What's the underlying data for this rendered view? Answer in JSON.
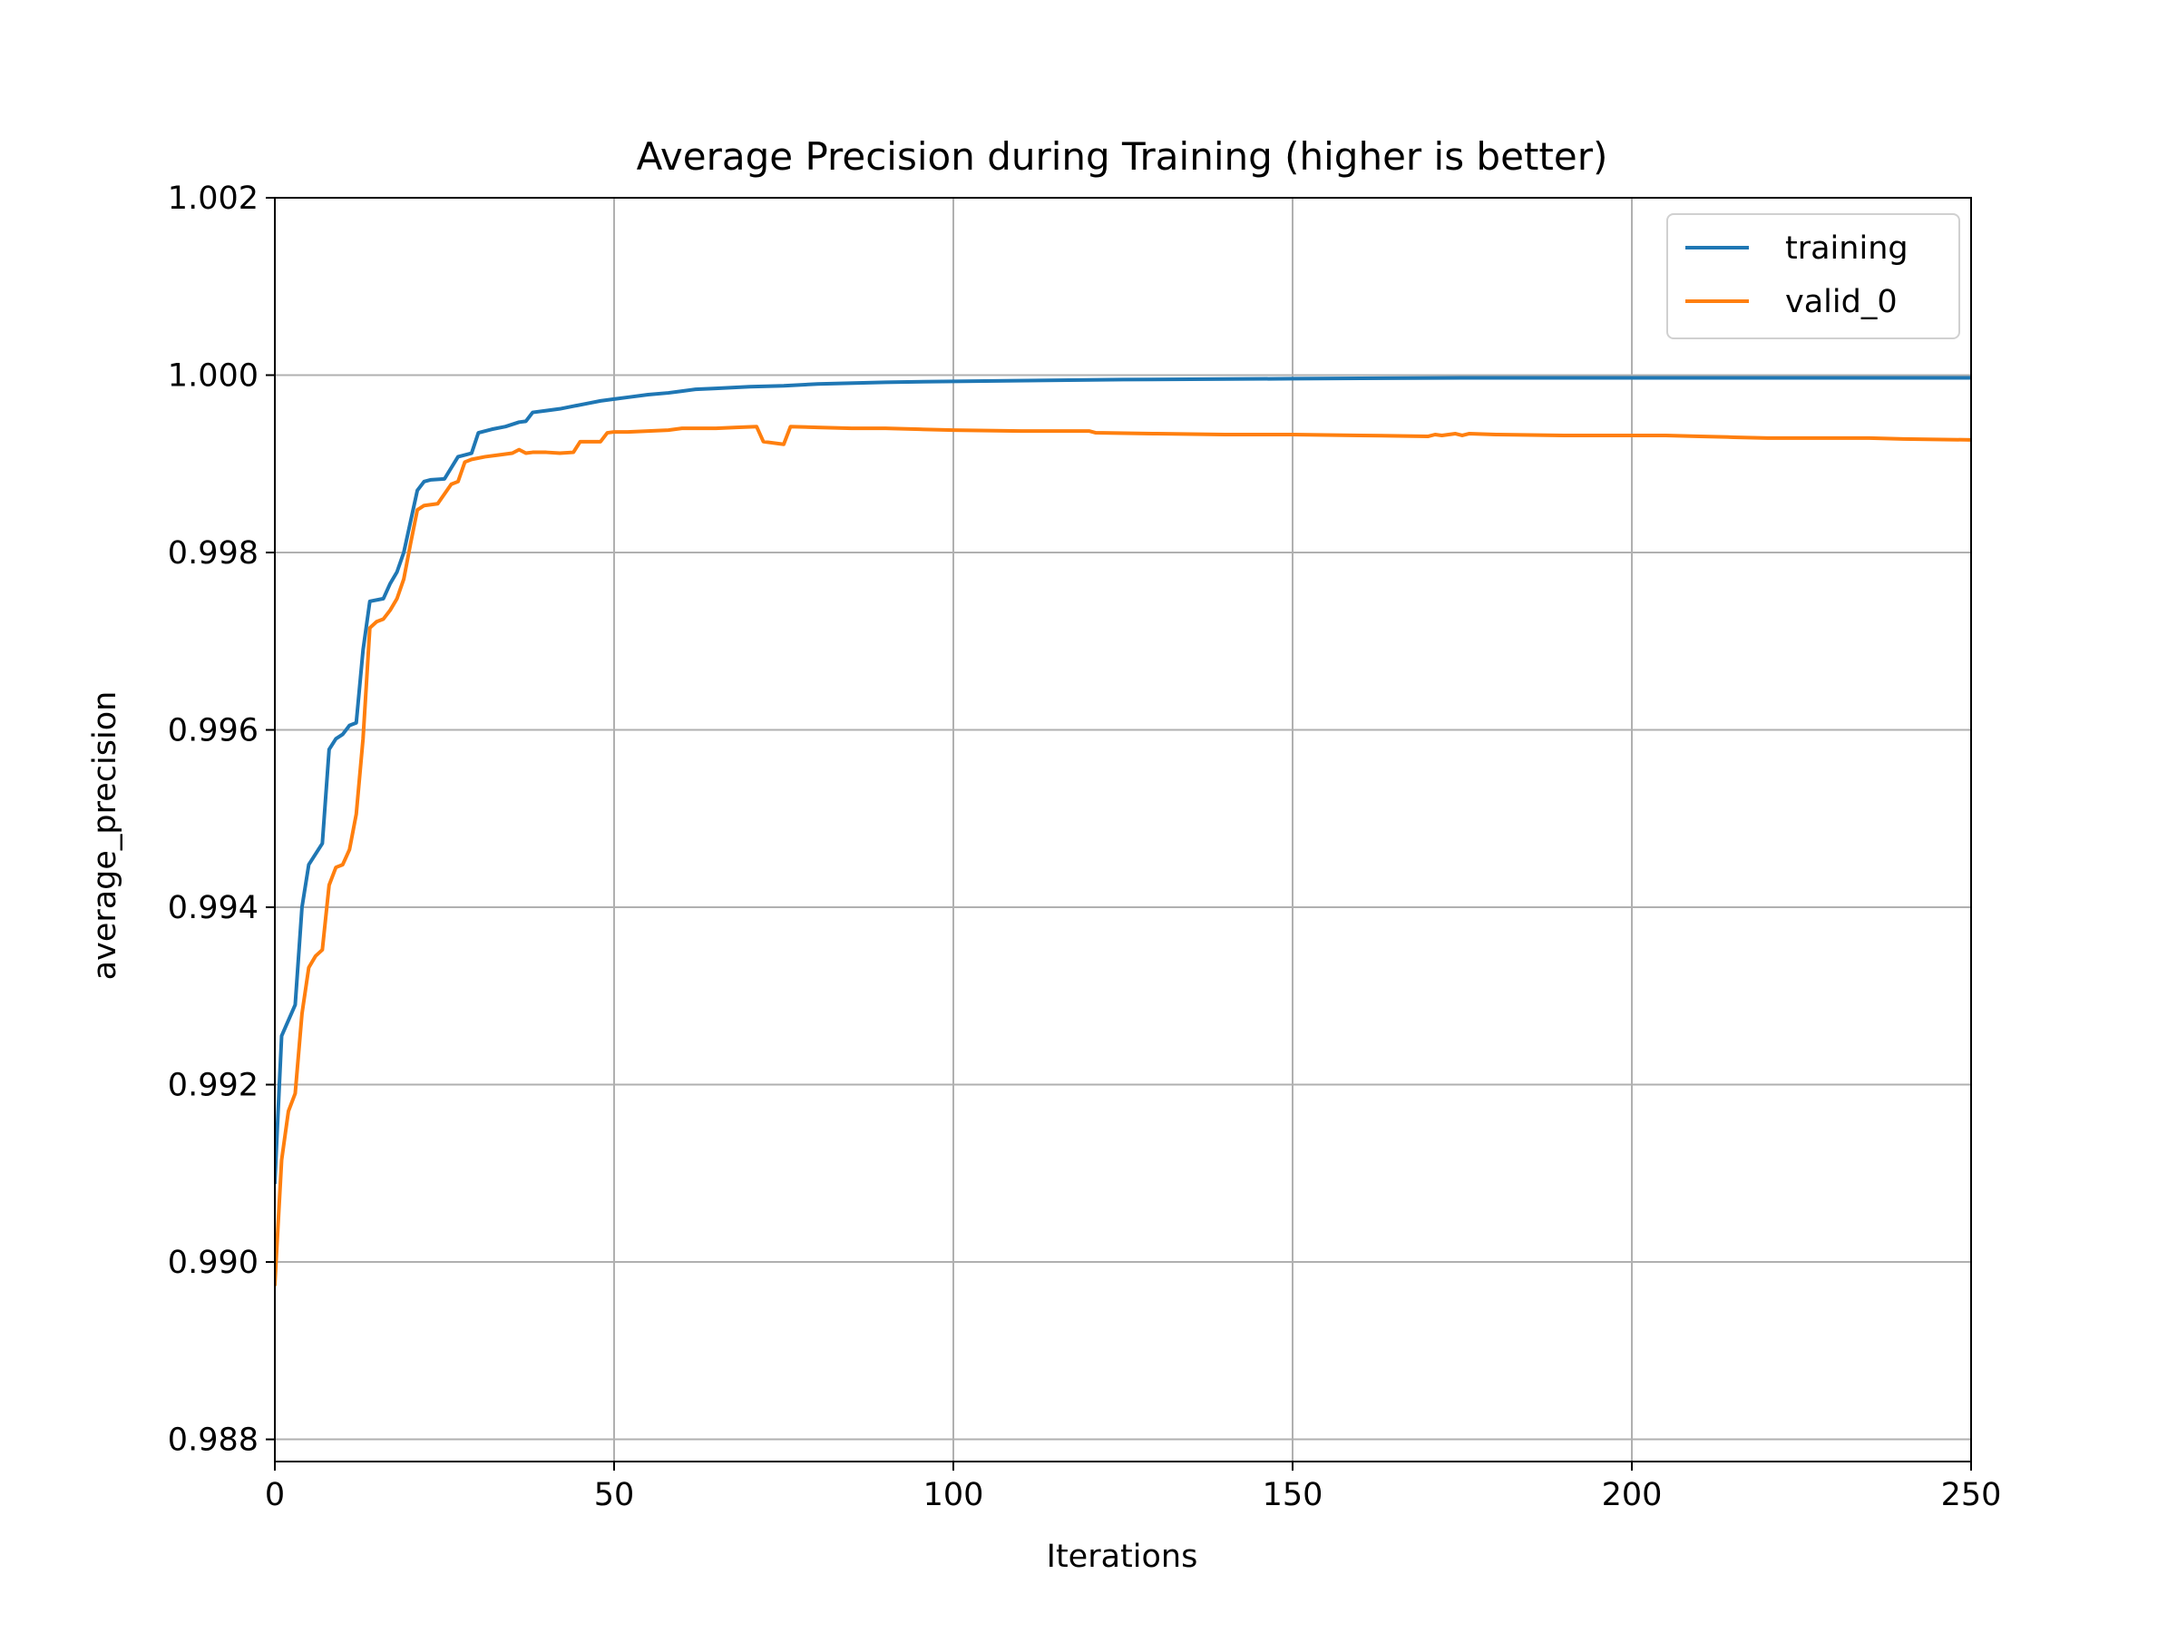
{
  "chart_data": {
    "type": "line",
    "title": "Average Precision during Training (higher is better)",
    "xlabel": "Iterations",
    "ylabel": "average_precision",
    "xlim": [
      0,
      250
    ],
    "ylim": [
      0.98775,
      1.002
    ],
    "xticks": [
      0,
      50,
      100,
      150,
      200,
      250
    ],
    "yticks": [
      0.988,
      0.99,
      0.992,
      0.994,
      0.996,
      0.998,
      1.0,
      1.002
    ],
    "ytick_labels": [
      "0.988",
      "0.990",
      "0.992",
      "0.994",
      "0.996",
      "0.998",
      "1.000",
      "1.002"
    ],
    "grid": true,
    "legend_position": "top-right",
    "colors": {
      "training": "#1f77b4",
      "valid_0": "#ff7f0e",
      "grid": "#b0b0b0",
      "axes": "#000000"
    },
    "series": [
      {
        "name": "training",
        "x": [
          0,
          1,
          3,
          4,
          5,
          7,
          8,
          9,
          10,
          11,
          12,
          13,
          14,
          16,
          17,
          18,
          19,
          21,
          22,
          23,
          25,
          27,
          29,
          30,
          32,
          34,
          36,
          37,
          38,
          40,
          42,
          44,
          46,
          48,
          50,
          52,
          55,
          58,
          60,
          62,
          65,
          70,
          75,
          80,
          90,
          100,
          125,
          150,
          175,
          200,
          225,
          250
        ],
        "y": [
          0.9909,
          0.99255,
          0.9929,
          0.994,
          0.99448,
          0.99472,
          0.99578,
          0.9959,
          0.99595,
          0.99605,
          0.99608,
          0.9969,
          0.99745,
          0.99748,
          0.99765,
          0.99778,
          0.998,
          0.9987,
          0.9988,
          0.99882,
          0.99883,
          0.99908,
          0.99912,
          0.99935,
          0.99939,
          0.99942,
          0.99947,
          0.99948,
          0.99958,
          0.9996,
          0.99962,
          0.99965,
          0.99968,
          0.99971,
          0.99973,
          0.99975,
          0.99978,
          0.9998,
          0.99982,
          0.99984,
          0.99985,
          0.99987,
          0.99988,
          0.9999,
          0.99992,
          0.99993,
          0.99995,
          0.99996,
          0.99997,
          0.99997,
          0.99997,
          0.99997
        ]
      },
      {
        "name": "valid_0",
        "x": [
          0,
          1,
          2,
          3,
          4,
          5,
          6,
          7,
          8,
          9,
          10,
          11,
          12,
          13,
          14,
          15,
          16,
          17,
          18,
          19,
          20,
          21,
          22,
          24,
          26,
          27,
          28,
          29,
          31,
          33,
          35,
          36,
          37,
          38,
          40,
          42,
          44,
          45,
          48,
          49,
          50,
          52,
          55,
          58,
          60,
          62,
          65,
          68,
          71,
          72,
          75,
          76,
          80,
          85,
          90,
          95,
          100,
          110,
          120,
          121,
          130,
          140,
          150,
          160,
          170,
          171,
          172,
          174,
          175,
          176,
          180,
          190,
          200,
          205,
          210,
          215,
          220,
          225,
          230,
          235,
          240,
          250
        ],
        "y": [
          0.98975,
          0.99115,
          0.9917,
          0.9919,
          0.9928,
          0.99332,
          0.99345,
          0.99352,
          0.99425,
          0.99445,
          0.99448,
          0.99465,
          0.99505,
          0.9959,
          0.99715,
          0.99722,
          0.99725,
          0.99735,
          0.99748,
          0.9977,
          0.9981,
          0.99848,
          0.99853,
          0.99855,
          0.99877,
          0.9988,
          0.99902,
          0.99905,
          0.99908,
          0.9991,
          0.99912,
          0.99916,
          0.99912,
          0.99913,
          0.99913,
          0.99912,
          0.99913,
          0.99925,
          0.99925,
          0.99935,
          0.99936,
          0.99936,
          0.99937,
          0.99938,
          0.9994,
          0.9994,
          0.9994,
          0.99941,
          0.99942,
          0.99925,
          0.99922,
          0.99942,
          0.99941,
          0.9994,
          0.9994,
          0.99939,
          0.99938,
          0.99937,
          0.99937,
          0.99935,
          0.99934,
          0.99933,
          0.99933,
          0.99932,
          0.99931,
          0.99933,
          0.99932,
          0.99934,
          0.99932,
          0.99934,
          0.99933,
          0.99932,
          0.99932,
          0.99932,
          0.99931,
          0.9993,
          0.99929,
          0.99929,
          0.99929,
          0.99929,
          0.99928,
          0.99927
        ]
      }
    ]
  }
}
